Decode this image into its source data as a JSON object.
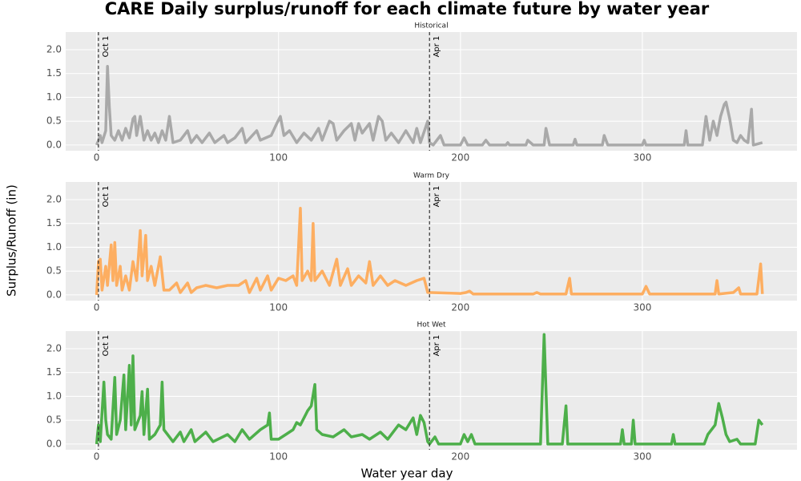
{
  "title": "CARE Daily surplus/runoff for each climate future by water year",
  "x_label": "Water year day",
  "y_label": "Surplus/Runoff (in)",
  "chart_data": [
    {
      "type": "line",
      "title": "Historical",
      "color": "#a9a9a9",
      "xlim": [
        -17,
        385
      ],
      "xticks": [
        0,
        100,
        200,
        300
      ],
      "ylim": [
        -0.12,
        2.37
      ],
      "yticks": [
        {
          "value": 0,
          "label": "0.0"
        },
        0.5,
        {
          "value": 1,
          "label": "1.0"
        },
        1.5,
        {
          "value": 2,
          "label": "2.0"
        }
      ],
      "grid": true,
      "vlines": [
        {
          "x": 1,
          "label": "Oct 1"
        },
        {
          "x": 183,
          "label": "Apr 1"
        }
      ],
      "x": [
        0,
        2,
        3,
        5,
        6,
        7,
        8,
        10,
        12,
        14,
        16,
        18,
        20,
        21,
        22,
        24,
        26,
        28,
        30,
        32,
        34,
        36,
        38,
        40,
        42,
        46,
        50,
        52,
        55,
        58,
        62,
        65,
        70,
        72,
        76,
        80,
        82,
        88,
        90,
        96,
        99,
        101,
        103,
        106,
        110,
        114,
        118,
        122,
        124,
        128,
        130,
        132,
        136,
        140,
        142,
        144,
        146,
        150,
        152,
        155,
        157,
        159,
        162,
        166,
        170,
        174,
        176,
        178,
        182,
        183,
        185,
        189,
        191,
        200,
        202,
        204,
        212,
        214,
        216,
        225,
        226,
        227,
        236,
        237,
        240,
        246,
        247,
        249,
        262,
        263,
        264,
        278,
        279,
        281,
        300,
        301,
        302,
        323,
        324,
        325,
        333,
        335,
        337,
        339,
        341,
        343,
        345,
        346,
        348,
        350,
        352,
        354,
        356,
        358,
        360,
        361,
        366
      ],
      "values": [
        0,
        0.2,
        0.05,
        0.3,
        1.65,
        0.8,
        0.2,
        0.1,
        0.3,
        0.1,
        0.35,
        0.15,
        0.55,
        0.6,
        0.2,
        0.6,
        0.1,
        0.3,
        0.1,
        0.25,
        0.05,
        0.3,
        0.1,
        0.6,
        0.05,
        0.1,
        0.3,
        0.05,
        0.2,
        0.05,
        0.25,
        0.05,
        0.2,
        0.05,
        0.15,
        0.35,
        0.05,
        0.3,
        0.1,
        0.2,
        0.45,
        0.6,
        0.2,
        0.3,
        0.05,
        0.25,
        0.1,
        0.35,
        0.1,
        0.5,
        0.45,
        0.1,
        0.3,
        0.45,
        0.1,
        0.45,
        0.25,
        0.45,
        0.1,
        0.6,
        0.5,
        0.1,
        0.25,
        0.05,
        0.3,
        0.05,
        0.35,
        0.05,
        0.5,
        0.05,
        0,
        0.2,
        0,
        0,
        0.15,
        0,
        0,
        0.1,
        0,
        0,
        0.05,
        0,
        0,
        0.1,
        0,
        0,
        0.35,
        0,
        0,
        0.12,
        0,
        0,
        0.2,
        0,
        0,
        0.1,
        0,
        0,
        0.3,
        0,
        0,
        0.6,
        0.1,
        0.5,
        0.2,
        0.6,
        0.85,
        0.9,
        0.55,
        0.1,
        0.05,
        0.2,
        0.1,
        0.05,
        0.75,
        0,
        0.05
      ]
    },
    {
      "type": "line",
      "title": "Warm Dry",
      "color": "#fdae61",
      "xlim": [
        -17,
        385
      ],
      "xticks": [
        0,
        100,
        200,
        300
      ],
      "ylim": [
        -0.12,
        2.37
      ],
      "yticks": [
        {
          "value": 0,
          "label": "0.0"
        },
        0.5,
        {
          "value": 1,
          "label": "1.0"
        },
        1.5,
        {
          "value": 2,
          "label": "2.0"
        }
      ],
      "grid": true,
      "vlines": [
        {
          "x": 1,
          "label": "Oct 1"
        },
        {
          "x": 183,
          "label": "Apr 1"
        }
      ],
      "x": [
        0,
        1,
        2,
        3,
        5,
        6,
        8,
        9,
        10,
        11,
        13,
        14,
        16,
        18,
        20,
        22,
        24,
        25,
        27,
        28,
        30,
        32,
        35,
        37,
        40,
        44,
        46,
        50,
        52,
        55,
        60,
        66,
        72,
        78,
        82,
        84,
        88,
        90,
        94,
        96,
        100,
        104,
        108,
        110,
        112,
        113,
        116,
        118,
        119,
        120,
        124,
        128,
        132,
        134,
        138,
        140,
        144,
        148,
        150,
        152,
        156,
        160,
        164,
        170,
        176,
        180,
        182,
        183,
        200,
        203,
        205,
        207,
        240,
        242,
        244,
        258,
        260,
        261,
        300,
        302,
        304,
        340,
        341,
        342,
        350,
        353,
        354,
        363,
        365,
        366
      ],
      "values": [
        0,
        0.7,
        0.75,
        0.1,
        0.6,
        0.2,
        1.05,
        0.3,
        1.1,
        0.2,
        0.6,
        0.1,
        0.4,
        0.1,
        0.7,
        0.3,
        1.35,
        0.4,
        1.25,
        0.3,
        0.6,
        0.2,
        0.8,
        0.1,
        0.1,
        0.25,
        0.05,
        0.25,
        0.05,
        0.15,
        0.2,
        0.15,
        0.2,
        0.2,
        0.3,
        0.05,
        0.35,
        0.1,
        0.4,
        0.1,
        0.35,
        0.3,
        0.4,
        0.2,
        1.82,
        0.3,
        0.5,
        0.3,
        1.5,
        0.3,
        0.5,
        0.2,
        0.75,
        0.2,
        0.55,
        0.2,
        0.4,
        0.25,
        0.7,
        0.2,
        0.4,
        0.2,
        0.3,
        0.2,
        0.3,
        0.35,
        0.05,
        0.05,
        0.03,
        0.05,
        0.08,
        0.02,
        0.02,
        0.05,
        0.02,
        0.02,
        0.35,
        0.02,
        0.02,
        0.18,
        0.02,
        0.02,
        0.3,
        0.02,
        0.05,
        0.15,
        0.02,
        0.02,
        0.65,
        0.02
      ]
    },
    {
      "type": "line",
      "title": "Hot Wet",
      "color": "#4daf4a",
      "xlim": [
        -17,
        385
      ],
      "xticks": [
        0,
        100,
        200,
        300
      ],
      "ylim": [
        -0.12,
        2.37
      ],
      "yticks": [
        {
          "value": 0,
          "label": "0.0"
        },
        0.5,
        {
          "value": 1,
          "label": "1.0"
        },
        1.5,
        {
          "value": 2,
          "label": "2.0"
        }
      ],
      "grid": true,
      "vlines": [
        {
          "x": 1,
          "label": "Oct 1"
        },
        {
          "x": 183,
          "label": "Apr 1"
        }
      ],
      "x": [
        0,
        1,
        2,
        4,
        5,
        6,
        8,
        10,
        11,
        13,
        15,
        16,
        18,
        19,
        20,
        21,
        24,
        25,
        26,
        28,
        29,
        32,
        35,
        36,
        37,
        39,
        42,
        46,
        48,
        52,
        54,
        60,
        64,
        72,
        76,
        80,
        84,
        90,
        94,
        95,
        96,
        100,
        104,
        108,
        110,
        112,
        116,
        118,
        120,
        121,
        124,
        130,
        136,
        140,
        146,
        150,
        156,
        160,
        166,
        170,
        174,
        176,
        178,
        180,
        182,
        183,
        186,
        188,
        200,
        202,
        204,
        206,
        208,
        244,
        246,
        248,
        256,
        258,
        259,
        288,
        289,
        290,
        294,
        295,
        296,
        316,
        317,
        318,
        334,
        336,
        340,
        342,
        344,
        346,
        348,
        352,
        354,
        362,
        364,
        366
      ],
      "values": [
        0,
        0.4,
        0.05,
        1.3,
        0.5,
        0.2,
        0.1,
        1.4,
        0.2,
        0.5,
        1.45,
        0.3,
        1.65,
        0.4,
        1.85,
        0.3,
        0.6,
        1.1,
        0.2,
        1.15,
        0.1,
        0.2,
        0.4,
        1.3,
        0.3,
        0.2,
        0.05,
        0.25,
        0.05,
        0.3,
        0.05,
        0.25,
        0.05,
        0.2,
        0.05,
        0.3,
        0.1,
        0.3,
        0.4,
        0.65,
        0.1,
        0.1,
        0.2,
        0.3,
        0.45,
        0.4,
        0.7,
        0.8,
        1.25,
        0.3,
        0.2,
        0.15,
        0.3,
        0.15,
        0.2,
        0.1,
        0.25,
        0.1,
        0.4,
        0.3,
        0.55,
        0.2,
        0.6,
        0.45,
        0.05,
        0,
        0.15,
        0,
        0,
        0.2,
        0.05,
        0.2,
        0,
        0,
        2.3,
        0,
        0,
        0.8,
        0,
        0,
        0.3,
        0,
        0,
        0.5,
        0,
        0,
        0.2,
        0,
        0,
        0.2,
        0.4,
        0.85,
        0.55,
        0.2,
        0.05,
        0.1,
        0,
        0,
        0.5,
        0.4
      ]
    }
  ]
}
